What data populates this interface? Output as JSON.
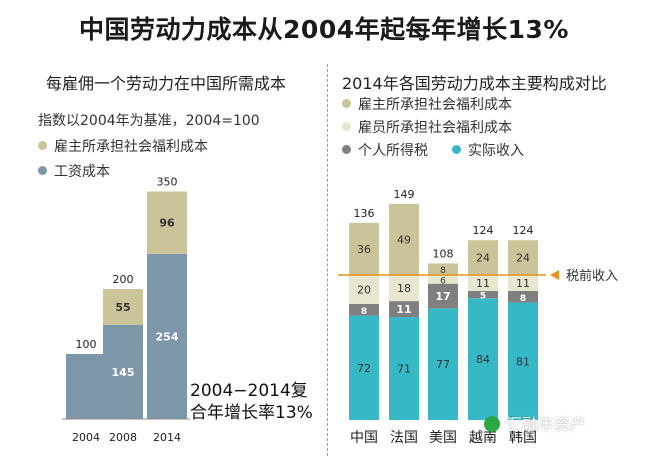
{
  "title": "中国劳动力成本从2004年起每年增长13%",
  "colors": {
    "employer_social": "#ccc499",
    "employee_social": "#e9e6cf",
    "personal_tax": "#7f7f7f",
    "wage_left": "#7b97a8",
    "actual_income": "#36b8c7",
    "pretax_line": "#e8941c"
  },
  "left": {
    "title": "每雇佣一个劳动力在中国所需成本",
    "subtitle": "指数以2004年为基准，2004=100",
    "legend": [
      {
        "label": "雇主所承担社会福利成本",
        "color_key": "employer_social"
      },
      {
        "label": "工资成本",
        "color_key": "wage_left"
      }
    ],
    "cagr_line1": "2004−2014复",
    "cagr_line2": "合年增长率13%"
  },
  "right": {
    "title": "2014年各国劳动力成本主要构成对比",
    "legend": [
      {
        "label": "雇主所承担社会福利成本",
        "color_key": "employer_social"
      },
      {
        "label": "雇员所承担社会福利成本",
        "color_key": "employee_social"
      },
      {
        "label": "个人所得税",
        "color_key": "personal_tax"
      },
      {
        "label": "实际收入",
        "color_key": "actual_income"
      }
    ],
    "pretax_label": "税前收入"
  },
  "watermark": "汇融丰资产",
  "chart_data": [
    {
      "type": "bar",
      "stacked": true,
      "categories": [
        "2004",
        "2008",
        "2014"
      ],
      "totals": [
        100,
        200,
        350
      ],
      "series": [
        {
          "name": "工资成本",
          "values": [
            100,
            145,
            254
          ]
        },
        {
          "name": "雇主所承担社会福利成本",
          "values": [
            0,
            55,
            96
          ]
        }
      ]
    },
    {
      "type": "bar",
      "stacked": true,
      "categories": [
        "中国",
        "法国",
        "美国",
        "越南",
        "韩国"
      ],
      "totals": [
        136,
        149,
        108,
        124,
        124
      ],
      "series": [
        {
          "name": "实际收入",
          "values": [
            72,
            71,
            77,
            84,
            81
          ]
        },
        {
          "name": "个人所得税",
          "values": [
            8,
            11,
            17,
            5,
            8
          ]
        },
        {
          "name": "雇员所承担社会福利成本",
          "values": [
            20,
            18,
            6,
            11,
            11
          ]
        },
        {
          "name": "雇主所承担社会福利成本",
          "values": [
            36,
            49,
            8,
            24,
            24
          ]
        }
      ],
      "annotation": "税前收入"
    }
  ]
}
